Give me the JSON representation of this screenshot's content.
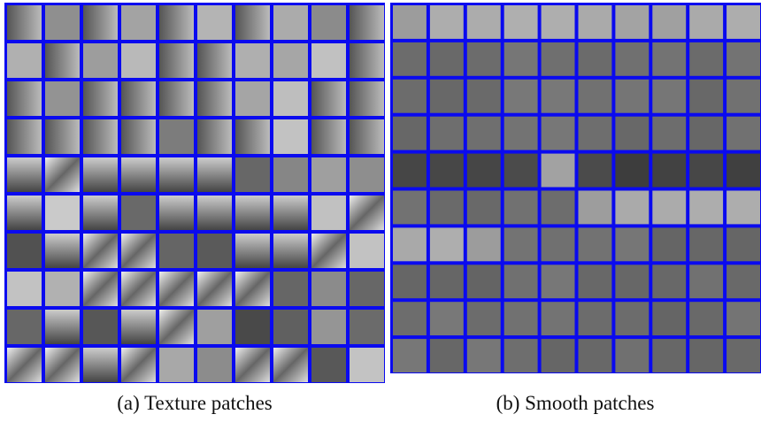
{
  "figure": {
    "panels": [
      {
        "caption": "(a) Texture patches"
      },
      {
        "caption": "(b) Smooth patches"
      }
    ]
  }
}
